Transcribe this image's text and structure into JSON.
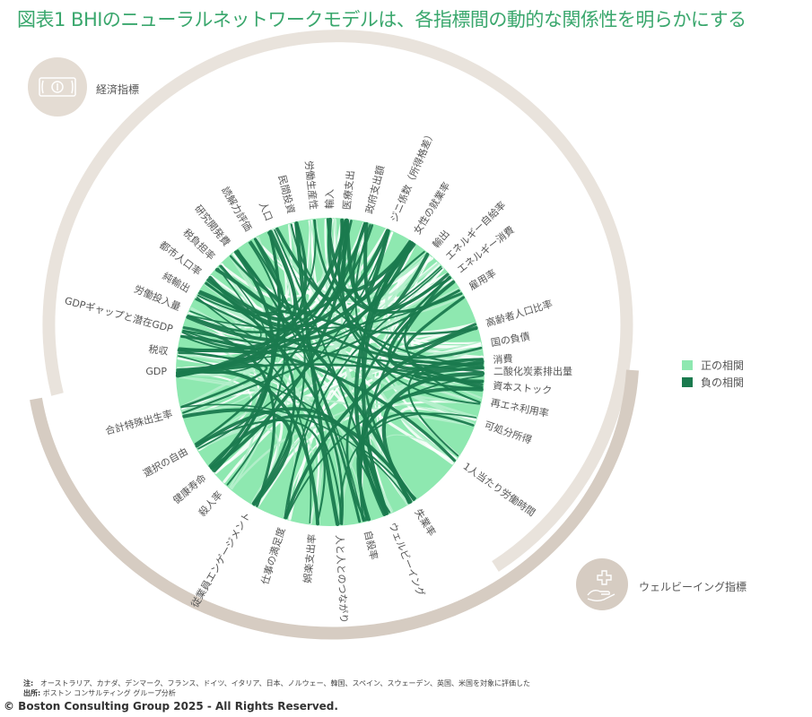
{
  "title": "図表1 BHIのニューラルネットワークモデルは、各指標間の動的な関係性を明らかにする",
  "groups": {
    "economic": {
      "label": "経済指標",
      "icon": "banknote-icon",
      "arc_color": "#e9e3dc",
      "badge_color": "#e4dcd3"
    },
    "wellbeing": {
      "label": "ウェルビーイング指標",
      "icon": "hand-with-cross-icon",
      "arc_color": "#d6ccc2",
      "badge_color": "#d6ccc2"
    }
  },
  "legend": [
    {
      "label": "正の相関",
      "color": "#8ee8b0"
    },
    {
      "label": "負の相関",
      "color": "#1a7a4e"
    }
  ],
  "nodes": [
    {
      "label": "GDP",
      "angle": 180
    },
    {
      "label": "税収",
      "angle": 187
    },
    {
      "label": "GDPギャップと潜在GDP",
      "angle": 195
    },
    {
      "label": "労働投入量",
      "angle": 203
    },
    {
      "label": "純輸出",
      "angle": 210
    },
    {
      "label": "都市人口率",
      "angle": 217
    },
    {
      "label": "税負担率",
      "angle": 224
    },
    {
      "label": "研究開発費",
      "angle": 231
    },
    {
      "label": "読解力評価",
      "angle": 240
    },
    {
      "label": "人口",
      "angle": 248
    },
    {
      "label": "民間投資",
      "angle": 256
    },
    {
      "label": "労働生産性",
      "angle": 264
    },
    {
      "label": "輸入",
      "angle": 270
    },
    {
      "label": "医療支出",
      "angle": 276
    },
    {
      "label": "政府支出額",
      "angle": 284
    },
    {
      "label": "ジニ係数（所得格差）",
      "angle": 293
    },
    {
      "label": "女性の就業率",
      "angle": 302
    },
    {
      "label": "輸出",
      "angle": 310
    },
    {
      "label": "エネルギー自給率",
      "angle": 316
    },
    {
      "label": "エネルギー消費",
      "angle": 322
    },
    {
      "label": "雇用率",
      "angle": 329
    },
    {
      "label": "高齢者人口比率",
      "angle": 343
    },
    {
      "label": "国の負債",
      "angle": 350
    },
    {
      "label": "消費",
      "angle": 356
    },
    {
      "label": "二酸化炭素排出量",
      "angle": 360
    },
    {
      "label": "資本ストック",
      "angle": 365
    },
    {
      "label": "再エネ利用率",
      "angle": 371
    },
    {
      "label": "可処分所得",
      "angle": 379
    },
    {
      "label": "1人当たり労働時間",
      "angle": 395
    },
    {
      "label": "失業率",
      "angle": 418
    },
    {
      "label": "ウェルビーイング",
      "angle": 428
    },
    {
      "label": "自殺率",
      "angle": 437
    },
    {
      "label": "人と人とのつながり",
      "angle": 447
    },
    {
      "label": "娯楽支出率",
      "angle": 456
    },
    {
      "label": "仕事の満足度",
      "angle": 467
    },
    {
      "label": "従業員エンゲージメント",
      "angle": 480
    },
    {
      "label": "殺人率",
      "angle": 492
    },
    {
      "label": "健康寿命",
      "angle": 500
    },
    {
      "label": "選択の自由",
      "angle": 511
    },
    {
      "label": "合計特殊出生率",
      "angle": 525
    }
  ],
  "notes": {
    "note_label": "注:",
    "note_text": "オーストラリア、カナダ、デンマーク、フランス、ドイツ、イタリア、日本、ノルウェー、韓国、スペイン、スウェーデン、英国、米国を対象に評価した",
    "source_label": "出所:",
    "source_text": "ボストン コンサルティング グループ分析"
  },
  "copyright": "© Boston Consulting Group 2025 - All Rights Reserved."
}
